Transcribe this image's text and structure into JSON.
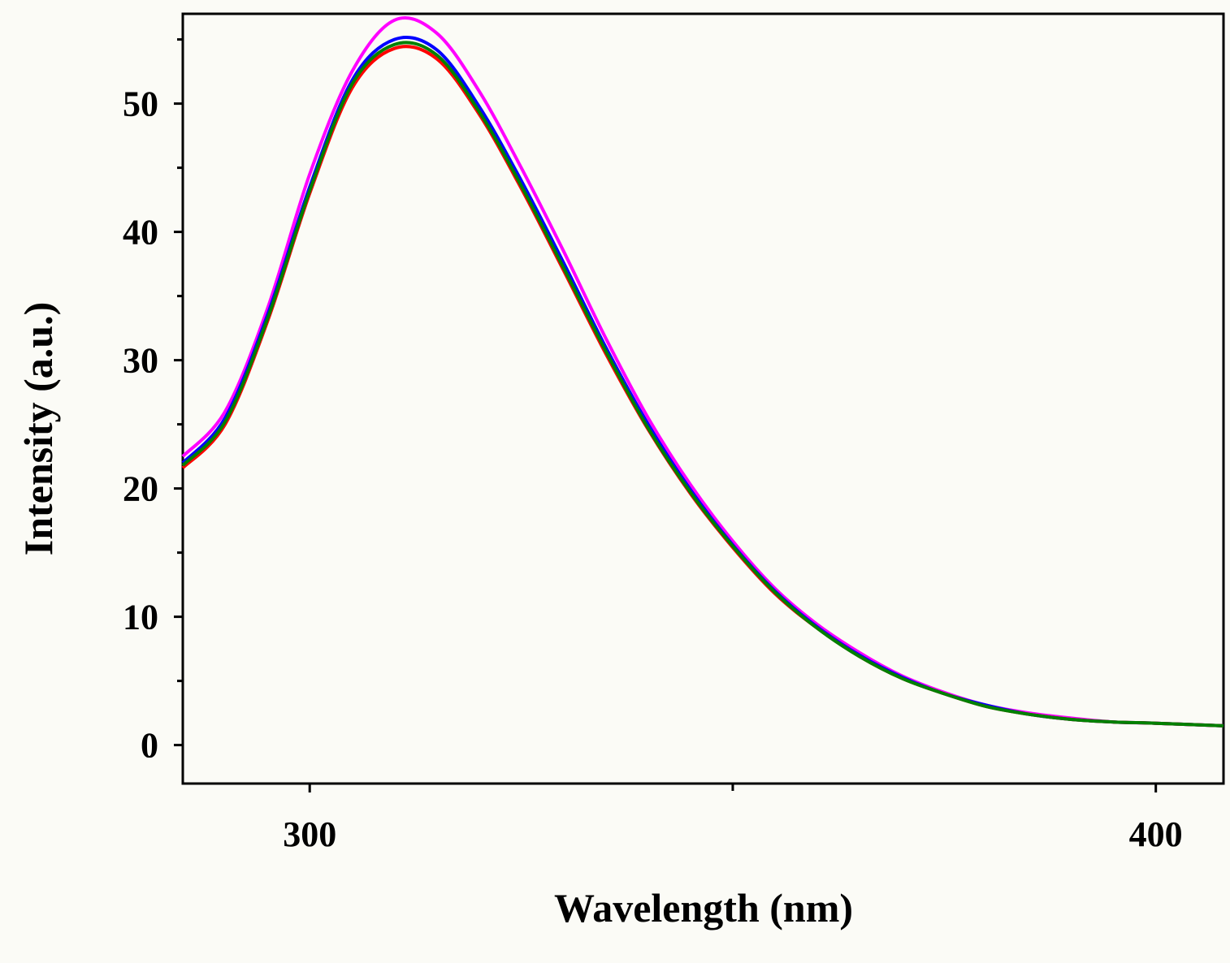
{
  "chart_data": {
    "type": "line",
    "title": "",
    "xlabel": "Wavelength (nm)",
    "ylabel": "Intensity (a.u.)",
    "xlim": [
      285,
      408
    ],
    "ylim": [
      -3,
      57
    ],
    "xticks": [
      300,
      400
    ],
    "xticks_minor": [
      350
    ],
    "yticks": [
      0,
      10,
      20,
      30,
      40,
      50
    ],
    "yticks_minor": [
      5,
      15,
      25,
      35,
      45,
      55
    ],
    "grid": false,
    "legend": "none",
    "x": [
      285,
      290,
      295,
      300,
      305,
      310,
      315,
      320,
      325,
      330,
      335,
      340,
      345,
      350,
      355,
      360,
      365,
      370,
      375,
      380,
      385,
      390,
      395,
      400,
      408
    ],
    "series": [
      {
        "color": "#ff00ff",
        "values": [
          22.5,
          26,
          34,
          44.5,
          52.5,
          56.5,
          55.5,
          51,
          45,
          38.5,
          31.7,
          25.5,
          20.3,
          15.9,
          12.2,
          9.4,
          7.2,
          5.4,
          4.1,
          3.1,
          2.5,
          2.1,
          1.8,
          1.7,
          1.5
        ]
      },
      {
        "color": "#0000ff",
        "values": [
          22,
          25.5,
          33.5,
          43.5,
          51.8,
          55,
          54.2,
          49.8,
          44,
          37.6,
          31,
          25,
          19.9,
          15.6,
          12,
          9.2,
          7,
          5.3,
          4,
          3.1,
          2.4,
          2,
          1.8,
          1.7,
          1.5
        ]
      },
      {
        "color": "#ff0000",
        "values": [
          21.6,
          25,
          33,
          43,
          51.2,
          54.3,
          53.5,
          49.2,
          43.4,
          37,
          30.5,
          24.6,
          19.6,
          15.4,
          11.8,
          9.1,
          6.9,
          5.2,
          4,
          3,
          2.4,
          2,
          1.8,
          1.7,
          1.5
        ]
      },
      {
        "color": "#008000",
        "values": [
          21.8,
          25.2,
          33.2,
          43.2,
          51.5,
          54.6,
          53.8,
          49.4,
          43.6,
          37.2,
          30.7,
          24.7,
          19.7,
          15.5,
          11.9,
          9.1,
          6.9,
          5.2,
          4,
          3,
          2.4,
          2,
          1.8,
          1.7,
          1.5
        ]
      }
    ]
  }
}
